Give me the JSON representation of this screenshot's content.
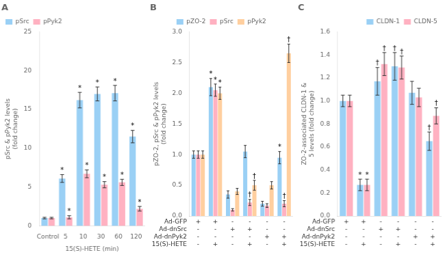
{
  "chart_data": [
    {
      "type": "bar",
      "title": "A",
      "ylabel": "pSrc & pPyk2 levels\n(fold change)",
      "xlabel": "15(S)-HETE (min)",
      "categories": [
        "Control",
        "5",
        "10",
        "30",
        "60",
        "120"
      ],
      "series": [
        {
          "name": "pSrc",
          "values": [
            1.0,
            6.1,
            16.2,
            17.0,
            17.1,
            11.5
          ],
          "errors": [
            0.1,
            0.5,
            1.0,
            0.9,
            1.0,
            0.8
          ],
          "marks": {
            "indices": [
              1,
              2,
              3,
              4,
              5
            ],
            "labels": [
              "*",
              "*",
              "*",
              "*",
              "*"
            ]
          }
        },
        {
          "name": "pPyk2",
          "values": [
            1.0,
            1.1,
            6.7,
            5.3,
            5.6,
            2.2
          ],
          "errors": [
            0.1,
            0.2,
            0.5,
            0.4,
            0.4,
            0.3
          ],
          "marks": {
            "indices": [
              1,
              2,
              3,
              4,
              5
            ],
            "labels": [
              "*",
              "*",
              "*",
              "*",
              "*"
            ]
          }
        }
      ],
      "ylim": [
        0,
        25
      ],
      "yticks": [
        0,
        5,
        10,
        15,
        20,
        25
      ],
      "grid": false,
      "legend": "upper left"
    },
    {
      "type": "bar",
      "title": "B",
      "ylabel": "pZO-2, pSrc & pPyk2 levels\n(fold change)",
      "categories": [
        null,
        null,
        null,
        null,
        null,
        null
      ],
      "treatment_row_labels": [
        "Ad-GFP",
        "Ad-dnSrc",
        "Ad-dnPyk2",
        "15(S)-HETE"
      ],
      "treatment_matrix": [
        [
          "+",
          "+",
          "-",
          "-",
          "-",
          "-"
        ],
        [
          "-",
          "-",
          "+",
          "+",
          "-",
          "-"
        ],
        [
          "-",
          "-",
          "-",
          "-",
          "+",
          "+"
        ],
        [
          "-",
          "+",
          "-",
          "+",
          "-",
          "+"
        ]
      ],
      "series": [
        {
          "name": "pZO-2",
          "values": [
            1.0,
            2.1,
            0.35,
            1.05,
            0.2,
            0.95
          ],
          "errors": [
            0.06,
            0.14,
            0.06,
            0.1,
            0.04,
            0.1
          ],
          "marks": {
            "indices": [
              1,
              5
            ],
            "labels": [
              "*",
              "*"
            ]
          }
        },
        {
          "name": "pSrc",
          "values": [
            1.0,
            2.05,
            0.1,
            0.22,
            0.17,
            0.2
          ],
          "errors": [
            0.06,
            0.1,
            0.02,
            0.05,
            0.03,
            0.05
          ],
          "marks": {
            "indices": [
              1,
              3,
              5
            ],
            "labels": [
              "*",
              "†",
              "†"
            ]
          }
        },
        {
          "name": "pPyk2",
          "values": [
            1.0,
            2.0,
            0.4,
            0.5,
            0.5,
            2.65
          ],
          "errors": [
            0.06,
            0.1,
            0.05,
            0.08,
            0.06,
            0.15
          ],
          "marks": {
            "indices": [
              1,
              3,
              5
            ],
            "labels": [
              "*",
              "†",
              "†"
            ]
          }
        }
      ],
      "ylim": [
        0,
        3.0
      ],
      "yticks": [
        {
          "value": 0,
          "label": "0.0"
        },
        0.5,
        {
          "value": 1,
          "label": "1.0"
        },
        1.5,
        {
          "value": 2,
          "label": "2.0"
        },
        2.5,
        {
          "value": 3,
          "label": "3.0"
        }
      ],
      "grid": false,
      "legend": "upper center"
    },
    {
      "type": "bar",
      "title": "C",
      "ylabel": "ZO-2-associated CLDN-1 &\n5 levels (fold change)",
      "categories": [
        null,
        null,
        null,
        null,
        null,
        null
      ],
      "treatment_row_labels": [
        "Ad-GFP",
        "Ad-dnSrc",
        "Ad-dnPyk2",
        "15(S)-HETE"
      ],
      "treatment_matrix": [
        [
          "+",
          "+",
          "-",
          "-",
          "-",
          "-"
        ],
        [
          "-",
          "-",
          "+",
          "+",
          "-",
          "-"
        ],
        [
          "-",
          "-",
          "-",
          "-",
          "+",
          "+"
        ],
        [
          "-",
          "+",
          "-",
          "+",
          "-",
          "+"
        ]
      ],
      "series": [
        {
          "name": "CLDN-1",
          "values": [
            1.0,
            0.27,
            1.17,
            1.3,
            1.07,
            0.65
          ],
          "errors": [
            0.05,
            0.05,
            0.12,
            0.12,
            0.1,
            0.08
          ],
          "marks": {
            "indices": [
              1,
              2,
              3,
              5
            ],
            "labels": [
              "*",
              "†",
              "†",
              "†"
            ]
          }
        },
        {
          "name": "CLDN-5",
          "values": [
            1.0,
            0.27,
            1.32,
            1.29,
            1.03,
            0.87
          ],
          "errors": [
            0.05,
            0.05,
            0.1,
            0.1,
            0.08,
            0.07
          ],
          "marks": {
            "indices": [
              1,
              2,
              3,
              5
            ],
            "labels": [
              "*",
              "†",
              "†",
              "†"
            ]
          }
        }
      ],
      "ylim": [
        0,
        1.6
      ],
      "yticks": [
        {
          "value": 0,
          "label": "0.0"
        },
        0.2,
        0.4,
        0.6,
        0.8,
        {
          "value": 1.0,
          "label": "1.0"
        },
        1.2,
        1.4,
        1.6
      ],
      "grid": false,
      "legend": "upper right"
    }
  ]
}
